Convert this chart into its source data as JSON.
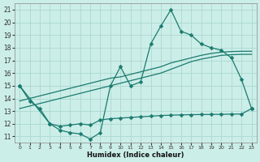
{
  "xlabel": "Humidex (Indice chaleur)",
  "bg_color": "#cceee8",
  "grid_color": "#aad8d0",
  "line_color": "#1a7a6e",
  "xlim": [
    -0.5,
    23.5
  ],
  "ylim": [
    10.5,
    21.5
  ],
  "xticks": [
    0,
    1,
    2,
    3,
    4,
    5,
    6,
    7,
    8,
    9,
    10,
    11,
    12,
    13,
    14,
    15,
    16,
    17,
    18,
    19,
    20,
    21,
    22,
    23
  ],
  "yticks": [
    11,
    12,
    13,
    14,
    15,
    16,
    17,
    18,
    19,
    20,
    21
  ],
  "line1_x": [
    0,
    1,
    2,
    3,
    4,
    5,
    6,
    7,
    8,
    9,
    10,
    11,
    12,
    13,
    14,
    15,
    16,
    17,
    18,
    19,
    20,
    21,
    22,
    23
  ],
  "line1_y": [
    15.0,
    13.8,
    13.2,
    12.0,
    11.5,
    11.3,
    11.2,
    10.8,
    11.3,
    15.0,
    16.5,
    15.0,
    15.3,
    18.3,
    19.7,
    21.0,
    19.3,
    19.0,
    18.3,
    18.0,
    17.8,
    17.2,
    15.5,
    13.2
  ],
  "line2_x": [
    0,
    1,
    2,
    3,
    4,
    5,
    6,
    7,
    8,
    9,
    10,
    11,
    12,
    13,
    14,
    15,
    16,
    17,
    18,
    19,
    20,
    21,
    22,
    23
  ],
  "line2_y": [
    13.8,
    14.0,
    14.2,
    14.4,
    14.6,
    14.8,
    15.0,
    15.2,
    15.4,
    15.6,
    15.7,
    15.9,
    16.1,
    16.3,
    16.5,
    16.8,
    17.0,
    17.2,
    17.4,
    17.55,
    17.65,
    17.7,
    17.72,
    17.72
  ],
  "line3_x": [
    0,
    1,
    2,
    3,
    4,
    5,
    6,
    7,
    8,
    9,
    10,
    11,
    12,
    13,
    14,
    15,
    16,
    17,
    18,
    19,
    20,
    21,
    22,
    23
  ],
  "line3_y": [
    13.2,
    13.4,
    13.6,
    13.8,
    14.0,
    14.2,
    14.4,
    14.6,
    14.8,
    15.0,
    15.2,
    15.4,
    15.6,
    15.8,
    16.0,
    16.3,
    16.6,
    16.9,
    17.1,
    17.25,
    17.4,
    17.45,
    17.48,
    17.48
  ],
  "line4_x": [
    0,
    3,
    4,
    5,
    6,
    7,
    8,
    9,
    10,
    11,
    12,
    13,
    14,
    15,
    16,
    17,
    18,
    19,
    20,
    21,
    22,
    23
  ],
  "line4_y": [
    15.0,
    12.0,
    11.8,
    11.9,
    12.0,
    11.9,
    12.3,
    12.4,
    12.45,
    12.5,
    12.55,
    12.6,
    12.65,
    12.68,
    12.7,
    12.72,
    12.73,
    12.74,
    12.75,
    12.76,
    12.77,
    13.2
  ],
  "markersize": 2.5
}
